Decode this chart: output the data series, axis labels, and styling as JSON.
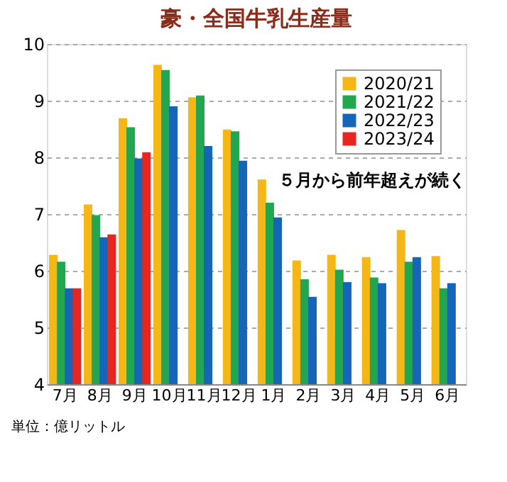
{
  "chart_data": {
    "type": "bar",
    "title": "豪・全国牛乳生産量",
    "categories": [
      "7月",
      "8月",
      "9月",
      "10月",
      "11月",
      "12月",
      "1月",
      "2月",
      "3月",
      "4月",
      "5月",
      "6月"
    ],
    "series": [
      {
        "name": "2020/21",
        "color": "#f5b716",
        "values": [
          6.28,
          7.17,
          8.69,
          9.63,
          9.06,
          8.49,
          7.61,
          6.18,
          6.28,
          6.24,
          6.72,
          6.26
        ]
      },
      {
        "name": "2021/22",
        "color": "#22a650",
        "values": [
          6.16,
          6.98,
          8.53,
          9.54,
          9.09,
          8.46,
          7.2,
          5.85,
          6.02,
          5.88,
          6.16,
          5.69
        ]
      },
      {
        "name": "2022/23",
        "color": "#1565b8",
        "values": [
          5.69,
          6.59,
          7.98,
          8.9,
          8.2,
          7.94,
          6.94,
          5.54,
          5.8,
          5.78,
          6.24,
          5.78
        ]
      },
      {
        "name": "2023/24",
        "color": "#e8251f",
        "values": [
          5.69,
          6.64,
          8.09,
          null,
          null,
          null,
          null,
          null,
          null,
          null,
          null,
          null
        ]
      }
    ],
    "ylim": [
      4,
      10
    ],
    "yticks": [
      4,
      5,
      6,
      7,
      8,
      9,
      10
    ],
    "grid": "y",
    "legend": "top right",
    "annotations": [
      "５月から前年超えが続く",
      "単位：億リットル"
    ]
  }
}
